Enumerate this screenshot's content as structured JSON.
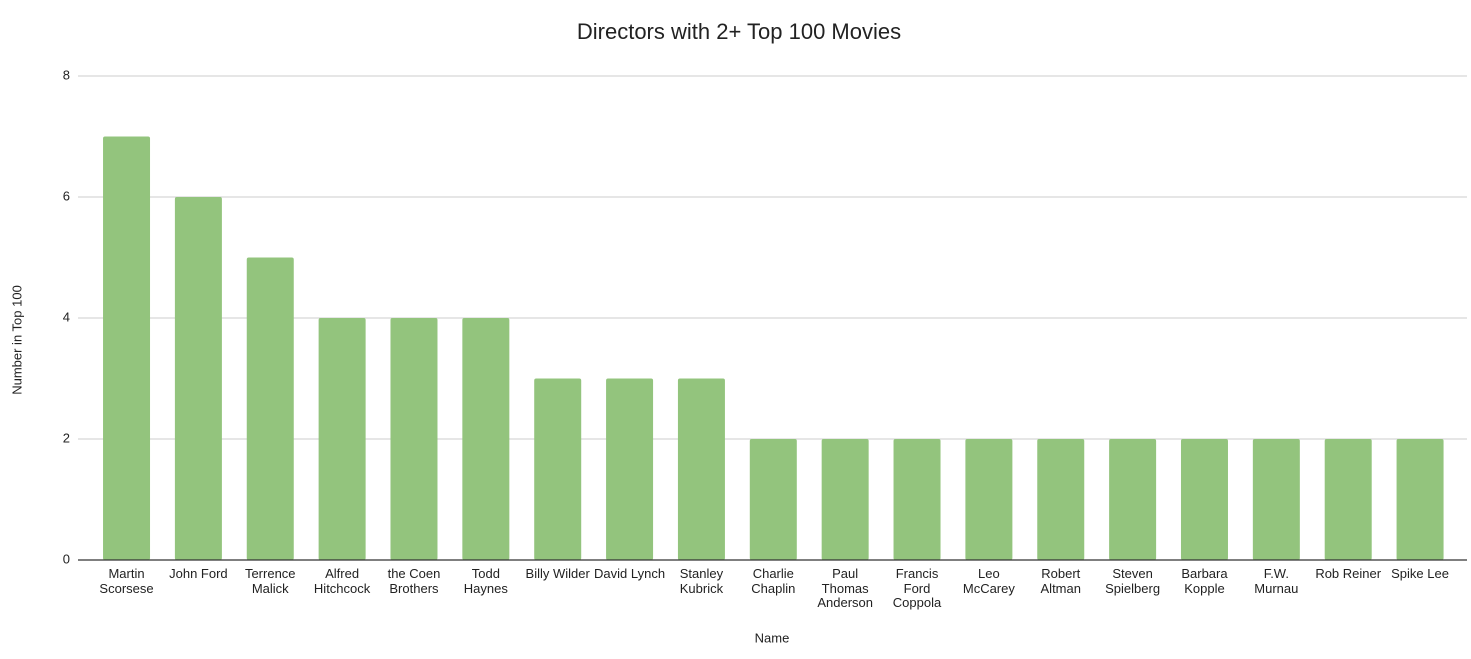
{
  "chart_data": {
    "type": "bar",
    "title": "Directors with 2+ Top 100 Movies",
    "x_label": "Name",
    "y_label": "Number in Top 100",
    "categories": [
      "Martin Scorsese",
      "John Ford",
      "Terrence Malick",
      "Alfred Hitchcock",
      "the Coen Brothers",
      "Todd Haynes",
      "Billy Wilder",
      "David Lynch",
      "Stanley Kubrick",
      "Charlie Chaplin",
      "Paul Thomas Anderson",
      "Francis Ford Coppola",
      "Leo McCarey",
      "Robert Altman",
      "Steven Spielberg",
      "Barbara Kopple",
      "F.W. Murnau",
      "Rob Reiner",
      "Spike Lee"
    ],
    "values": [
      7,
      6,
      5,
      4,
      4,
      4,
      3,
      3,
      3,
      2,
      2,
      2,
      2,
      2,
      2,
      2,
      2,
      2,
      2
    ],
    "color": "#93c47d",
    "ylim": [
      0,
      8
    ],
    "yticks": [
      0,
      2,
      4,
      6,
      8
    ],
    "grid": true
  }
}
